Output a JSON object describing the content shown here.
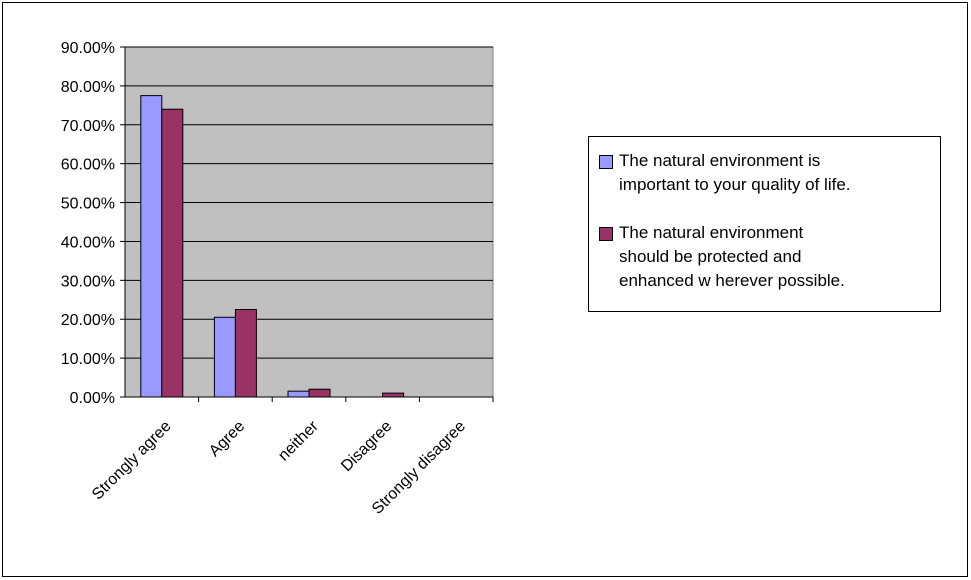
{
  "chart_data": {
    "type": "bar",
    "categories": [
      "Strongly agree",
      "Agree",
      "neither",
      "Disagree",
      "Strongly disagree"
    ],
    "series": [
      {
        "name": "The natural environment is important to your quality of life.",
        "values": [
          77.5,
          20.5,
          1.5,
          0,
          0
        ],
        "color": "#9999ff"
      },
      {
        "name": "The natural environment should be protected and enhanced w herever possible.",
        "values": [
          74.0,
          22.5,
          2.0,
          1.0,
          0
        ],
        "color": "#993366"
      }
    ],
    "ylim": [
      0,
      90
    ],
    "yticks": [
      0,
      10,
      20,
      30,
      40,
      50,
      60,
      70,
      80,
      90
    ],
    "ytick_labels": [
      "0.00%",
      "10.00%",
      "20.00%",
      "30.00%",
      "40.00%",
      "50.00%",
      "60.00%",
      "70.00%",
      "80.00%",
      "90.00%"
    ],
    "plot_background": "#c0c0c0",
    "grid": true,
    "legend_position": "right"
  },
  "legend": {
    "items": [
      {
        "label": "The natural environment is\nimportant to your quality of life.",
        "color": "#9999ff"
      },
      {
        "label": "The natural environment\nshould be protected and\nenhanced w herever possible.",
        "color": "#993366"
      }
    ]
  }
}
